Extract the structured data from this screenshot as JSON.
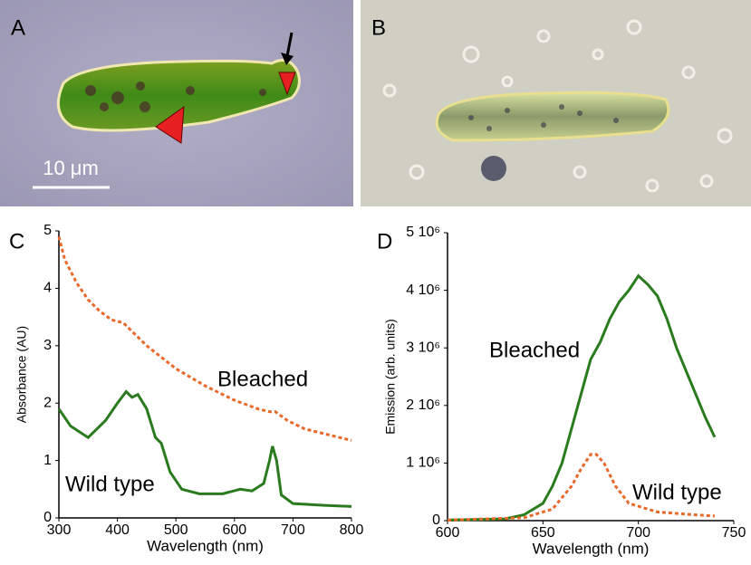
{
  "figure": {
    "panels": [
      "A",
      "B",
      "C",
      "D"
    ],
    "scale_bar": "10 μm"
  },
  "chart_data": [
    {
      "type": "line",
      "x_label": "Wavelength (nm)",
      "y_label": "Absorbance (AU)",
      "xlim": [
        300,
        800
      ],
      "xticks": [
        300,
        400,
        500,
        600,
        700,
        800
      ],
      "ylim": [
        0,
        5
      ],
      "yticks": [
        0,
        1,
        2,
        3,
        4,
        5
      ],
      "series": [
        {
          "name": "Bleached",
          "color": "#e8692a",
          "line_style": "dashed",
          "x": [
            300,
            310,
            330,
            350,
            370,
            390,
            410,
            430,
            450,
            500,
            550,
            600,
            640,
            660,
            670,
            690,
            720,
            760,
            800
          ],
          "values": [
            4.9,
            4.5,
            4.1,
            3.8,
            3.6,
            3.45,
            3.4,
            3.2,
            3.0,
            2.6,
            2.3,
            2.05,
            1.9,
            1.85,
            1.85,
            1.7,
            1.55,
            1.45,
            1.35
          ]
        },
        {
          "name": "Wild type",
          "color": "#2a7a1e",
          "line_style": "solid",
          "x": [
            300,
            320,
            350,
            380,
            400,
            415,
            425,
            435,
            450,
            465,
            475,
            490,
            510,
            540,
            580,
            610,
            630,
            650,
            660,
            665,
            672,
            680,
            700,
            750,
            800
          ],
          "values": [
            1.9,
            1.6,
            1.4,
            1.7,
            2.0,
            2.2,
            2.1,
            2.15,
            1.9,
            1.4,
            1.3,
            0.8,
            0.5,
            0.42,
            0.42,
            0.5,
            0.47,
            0.6,
            1.0,
            1.25,
            1.0,
            0.4,
            0.25,
            0.22,
            0.2
          ]
        }
      ]
    },
    {
      "type": "line",
      "x_label": "Wavelength (nm)",
      "y_label": "Emission (arb. units)",
      "xlim": [
        600,
        750
      ],
      "xticks": [
        600,
        650,
        700,
        750
      ],
      "ylim": [
        0,
        5000000
      ],
      "yticks": [
        0,
        {
          "value": 1000000,
          "label": "1 10⁶"
        },
        {
          "value": 2000000,
          "label": "2 10⁶"
        },
        {
          "value": 3000000,
          "label": "3 10⁶"
        },
        {
          "value": 4000000,
          "label": "4 10⁶"
        },
        {
          "value": 5000000,
          "label": "5 10⁶"
        }
      ],
      "series": [
        {
          "name": "Wild type",
          "color": "#2a7a1e",
          "line_style": "solid",
          "x": [
            600,
            630,
            640,
            650,
            655,
            660,
            665,
            670,
            675,
            680,
            685,
            690,
            695,
            700,
            705,
            710,
            715,
            720,
            725,
            730,
            735,
            740
          ],
          "values": [
            10000,
            30000,
            100000,
            300000,
            600000,
            1000000,
            1600000,
            2200000,
            2800000,
            3100000,
            3500000,
            3800000,
            4000000,
            4250000,
            4100000,
            3900000,
            3500000,
            3000000,
            2600000,
            2200000,
            1800000,
            1450000
          ]
        },
        {
          "name": "Bleached",
          "color": "#e8692a",
          "line_style": "dashed",
          "x": [
            600,
            640,
            655,
            665,
            670,
            675,
            678,
            682,
            688,
            695,
            710,
            730,
            740
          ],
          "values": [
            10000,
            50000,
            200000,
            600000,
            900000,
            1150000,
            1150000,
            1000000,
            600000,
            300000,
            150000,
            100000,
            80000
          ]
        }
      ]
    }
  ]
}
